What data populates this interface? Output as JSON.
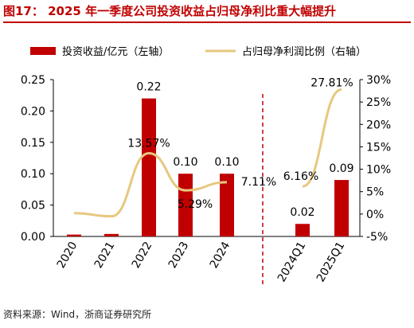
{
  "header": {
    "title": "图17： 2025 年一季度公司投资收益占归母净利比重大幅提升"
  },
  "footer": {
    "source": "资料来源：Wind，浙商证券研究所"
  },
  "colors": {
    "bar": "#c00000",
    "line": "#e6c87f",
    "title": "#c00000",
    "divider": "#c00000"
  },
  "chart_data": {
    "type": "bar",
    "categories": [
      "2020",
      "2021",
      "2022",
      "2023",
      "2024",
      "2024Q1",
      "2025Q1"
    ],
    "series": [
      {
        "name": "投资收益/亿元（左轴）",
        "type": "bar",
        "axis": "left",
        "values": [
          0.003,
          0.004,
          0.22,
          0.1,
          0.1,
          0.02,
          0.09
        ],
        "labels": [
          "",
          "",
          "0.22",
          "0.10",
          "0.10",
          "0.02",
          "0.09"
        ]
      },
      {
        "name": "占归母净利润比例（右轴）",
        "type": "line",
        "axis": "right",
        "values": [
          0.2,
          -0.5,
          13.57,
          5.29,
          7.11,
          6.16,
          27.81
        ],
        "labels": [
          "",
          "",
          "13.57%",
          "5.29%",
          "7.11%",
          "6.16%",
          "27.81%"
        ]
      }
    ],
    "y_left": {
      "ylim": [
        0,
        0.25
      ],
      "ticks": [
        "0.00",
        "0.05",
        "0.10",
        "0.15",
        "0.20",
        "0.25"
      ]
    },
    "y_right": {
      "ylim": [
        -5,
        30
      ],
      "ticks": [
        "-5%",
        "0%",
        "5%",
        "10%",
        "15%",
        "20%",
        "25%",
        "30%"
      ]
    },
    "divider_between": [
      "2024",
      "2024Q1"
    ],
    "grid": false,
    "legend_position": "top"
  }
}
